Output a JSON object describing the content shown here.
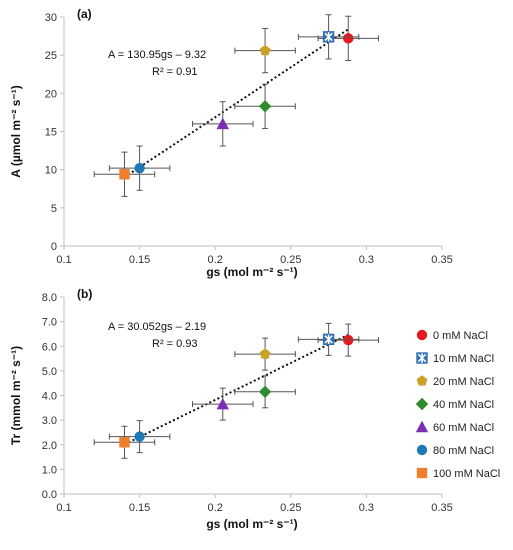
{
  "chart_data": [
    {
      "type": "scatter",
      "panel_label": "(a)",
      "xlabel": "gs (mol m⁻² s⁻¹)",
      "ylabel": "A (µmol m⁻² s⁻¹)",
      "xlim": [
        0.1,
        0.35
      ],
      "ylim": [
        0,
        30
      ],
      "xticks": [
        0.1,
        0.15,
        0.2,
        0.25,
        0.3,
        0.35
      ],
      "xtick_labels": [
        "0.1",
        "0.15",
        "0.2",
        "0.25",
        "0.3",
        "0.35"
      ],
      "yticks": [
        0,
        5,
        10,
        15,
        20,
        25,
        30
      ],
      "ytick_labels": [
        "0",
        "5",
        "10",
        "15",
        "20",
        "25",
        "30"
      ],
      "grid": false,
      "equation": "A = 130.95gs – 9.32",
      "r2": "R² = 0.91",
      "trendline": {
        "slope": 130.95,
        "intercept": -9.32,
        "x_range": [
          0.14,
          0.288
        ]
      },
      "series": [
        {
          "name": "0 mM NaCl",
          "x": 0.288,
          "y": 27.2,
          "xerr": 0.02,
          "yerr": 2.9,
          "color": "#e8191e",
          "marker": "circle"
        },
        {
          "name": "10 mM NaCl",
          "x": 0.275,
          "y": 27.4,
          "xerr": 0.02,
          "yerr": 2.9,
          "color": "#2f6fb5",
          "marker": "star"
        },
        {
          "name": "20 mM NaCl",
          "x": 0.233,
          "y": 25.6,
          "xerr": 0.02,
          "yerr": 2.9,
          "color": "#c9a227",
          "marker": "pentagon"
        },
        {
          "name": "40 mM NaCl",
          "x": 0.233,
          "y": 18.3,
          "xerr": 0.02,
          "yerr": 2.9,
          "color": "#2e8b2e",
          "marker": "diamond"
        },
        {
          "name": "60 mM NaCl",
          "x": 0.205,
          "y": 16.0,
          "xerr": 0.02,
          "yerr": 2.9,
          "color": "#7b2fb5",
          "marker": "triangle"
        },
        {
          "name": "80 mM NaCl",
          "x": 0.15,
          "y": 10.2,
          "xerr": 0.02,
          "yerr": 2.9,
          "color": "#1f77b4",
          "marker": "circle"
        },
        {
          "name": "100 mM NaCl",
          "x": 0.14,
          "y": 9.4,
          "xerr": 0.02,
          "yerr": 2.9,
          "color": "#f07f2d",
          "marker": "square"
        }
      ]
    },
    {
      "type": "scatter",
      "panel_label": "(b)",
      "xlabel": "gs (mol m⁻² s⁻¹)",
      "ylabel": "Tr (mmol m⁻² s⁻¹)",
      "xlim": [
        0.1,
        0.35
      ],
      "ylim": [
        0,
        8
      ],
      "xticks": [
        0.1,
        0.15,
        0.2,
        0.25,
        0.3,
        0.35
      ],
      "xtick_labels": [
        "0.1",
        "0.15",
        "0.2",
        "0.25",
        "0.3",
        "0.35"
      ],
      "yticks": [
        0,
        1,
        2,
        3,
        4,
        5,
        6,
        7,
        8
      ],
      "ytick_labels": [
        "0.0",
        "1.0",
        "2.0",
        "3.0",
        "4.0",
        "5.0",
        "6.0",
        "7.0",
        "8.0"
      ],
      "grid": false,
      "equation": "A = 30.052gs – 2.19",
      "r2": "R² = 0.93",
      "trendline": {
        "slope": 30.052,
        "intercept": -2.19,
        "x_range": [
          0.14,
          0.288
        ]
      },
      "legend_placement": "right",
      "series": [
        {
          "name": "0 mM NaCl",
          "x": 0.288,
          "y": 6.25,
          "xerr": 0.02,
          "yerr": 0.65,
          "color": "#e8191e",
          "marker": "circle"
        },
        {
          "name": "10 mM NaCl",
          "x": 0.275,
          "y": 6.28,
          "xerr": 0.02,
          "yerr": 0.65,
          "color": "#2f6fb5",
          "marker": "star"
        },
        {
          "name": "20 mM NaCl",
          "x": 0.233,
          "y": 5.68,
          "xerr": 0.02,
          "yerr": 0.65,
          "color": "#c9a227",
          "marker": "pentagon"
        },
        {
          "name": "40 mM NaCl",
          "x": 0.233,
          "y": 4.15,
          "xerr": 0.02,
          "yerr": 0.65,
          "color": "#2e8b2e",
          "marker": "diamond"
        },
        {
          "name": "60 mM NaCl",
          "x": 0.205,
          "y": 3.65,
          "xerr": 0.02,
          "yerr": 0.65,
          "color": "#7b2fb5",
          "marker": "triangle"
        },
        {
          "name": "80 mM NaCl",
          "x": 0.15,
          "y": 2.33,
          "xerr": 0.02,
          "yerr": 0.65,
          "color": "#1f77b4",
          "marker": "circle"
        },
        {
          "name": "100 mM NaCl",
          "x": 0.14,
          "y": 2.1,
          "xerr": 0.02,
          "yerr": 0.65,
          "color": "#f07f2d",
          "marker": "square"
        }
      ]
    }
  ]
}
